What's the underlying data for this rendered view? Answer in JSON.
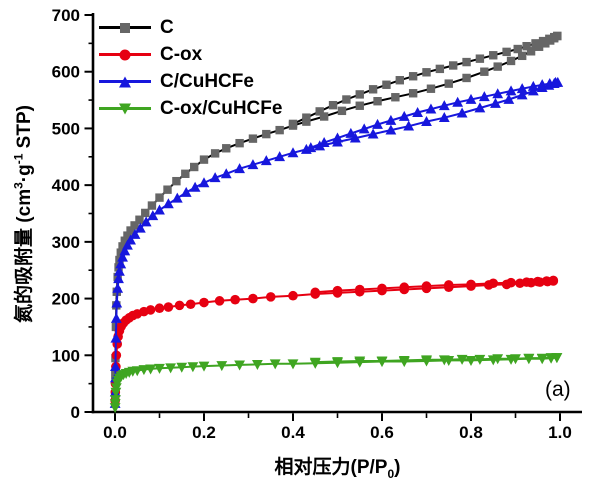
{
  "figure": {
    "panel_label": "(a)"
  },
  "legend": {
    "items": [
      {
        "label": "C",
        "line_color": "#000000",
        "marker_color": "#666666",
        "marker": "square"
      },
      {
        "label": "C-ox",
        "line_color": "#e60011",
        "marker_color": "#e60011",
        "marker": "circle"
      },
      {
        "label": "C/CuHCFe",
        "line_color": "#1717dd",
        "marker_color": "#1717dd",
        "marker": "triangle-up"
      },
      {
        "label": "C-ox/CuHCFe",
        "line_color": "#3fa521",
        "marker_color": "#3fa521",
        "marker": "triangle-down"
      }
    ]
  },
  "axes": {
    "x_axis": {
      "title_parts": {
        "p1": "相对压力(P/P",
        "sub1": "0",
        "p2": ")"
      },
      "range": [
        0,
        1
      ],
      "ticks": [
        0,
        0.2,
        0.4,
        0.6,
        0.8,
        1.0
      ],
      "tick_labels": [
        "0.0",
        "0.2",
        "0.4",
        "0.6",
        "0.8",
        "1.0"
      ],
      "minor_step": 0.1
    },
    "y_axis": {
      "title_parts": {
        "p1": "氮的吸附量 (cm",
        "sup1": "3",
        "p2": "·g",
        "sup2": "-1",
        "p3": " STP)"
      },
      "range": [
        0,
        700
      ],
      "ticks": [
        0,
        100,
        200,
        300,
        400,
        500,
        600,
        700
      ],
      "tick_labels": [
        "0",
        "100",
        "200",
        "300",
        "400",
        "500",
        "600",
        "700"
      ],
      "minor_step": 50
    }
  },
  "chart_data": {
    "type": "line",
    "title": "",
    "xlabel": "相对压力(P/P0)",
    "ylabel": "氮的吸附量 (cm3·g-1 STP)",
    "xlim": [
      0,
      1
    ],
    "ylim": [
      0,
      700
    ],
    "grid": false,
    "legend_position": "top-left",
    "series": [
      {
        "name": "C",
        "line_color": "#000000",
        "marker_color": "#666666",
        "marker": "square",
        "adsorption": [
          [
            0.0004,
            30
          ],
          [
            0.0007,
            65
          ],
          [
            0.001,
            95
          ],
          [
            0.002,
            150
          ],
          [
            0.003,
            188
          ],
          [
            0.004,
            212
          ],
          [
            0.006,
            238
          ],
          [
            0.008,
            255
          ],
          [
            0.01,
            268
          ],
          [
            0.013,
            281
          ],
          [
            0.017,
            292
          ],
          [
            0.022,
            302
          ],
          [
            0.028,
            311
          ],
          [
            0.035,
            320
          ],
          [
            0.044,
            329
          ],
          [
            0.055,
            339
          ],
          [
            0.068,
            351
          ],
          [
            0.083,
            364
          ],
          [
            0.1,
            378
          ],
          [
            0.118,
            392
          ],
          [
            0.138,
            407
          ],
          [
            0.158,
            420
          ],
          [
            0.178,
            432
          ],
          [
            0.2,
            445
          ],
          [
            0.225,
            456
          ],
          [
            0.25,
            465
          ],
          [
            0.28,
            474
          ],
          [
            0.31,
            482
          ],
          [
            0.34,
            490
          ],
          [
            0.37,
            497
          ],
          [
            0.4,
            505
          ],
          [
            0.43,
            512
          ],
          [
            0.47,
            521
          ],
          [
            0.51,
            531
          ],
          [
            0.55,
            540
          ],
          [
            0.59,
            548
          ],
          [
            0.63,
            555
          ],
          [
            0.67,
            562
          ],
          [
            0.71,
            570
          ],
          [
            0.75,
            579
          ],
          [
            0.79,
            589
          ],
          [
            0.83,
            600
          ],
          [
            0.86,
            609
          ],
          [
            0.89,
            619
          ],
          [
            0.915,
            628
          ],
          [
            0.935,
            636
          ],
          [
            0.953,
            644
          ],
          [
            0.967,
            650
          ],
          [
            0.978,
            655
          ],
          [
            0.987,
            659
          ],
          [
            0.994,
            663
          ]
        ],
        "desorption": [
          [
            0.4,
            508
          ],
          [
            0.43,
            519
          ],
          [
            0.46,
            530
          ],
          [
            0.49,
            541
          ],
          [
            0.52,
            551
          ],
          [
            0.55,
            560
          ],
          [
            0.58,
            569
          ],
          [
            0.61,
            577
          ],
          [
            0.64,
            585
          ],
          [
            0.67,
            592
          ],
          [
            0.7,
            599
          ],
          [
            0.73,
            605
          ],
          [
            0.76,
            611
          ],
          [
            0.79,
            617
          ],
          [
            0.82,
            623
          ],
          [
            0.85,
            629
          ],
          [
            0.88,
            635
          ],
          [
            0.905,
            640
          ],
          [
            0.925,
            645
          ],
          [
            0.945,
            650
          ],
          [
            0.962,
            654
          ],
          [
            0.976,
            658
          ],
          [
            0.987,
            661
          ],
          [
            0.994,
            663
          ]
        ]
      },
      {
        "name": "C-ox",
        "line_color": "#e60011",
        "marker_color": "#e60011",
        "marker": "circle",
        "adsorption": [
          [
            0.0004,
            20
          ],
          [
            0.0007,
            35
          ],
          [
            0.001,
            50
          ],
          [
            0.002,
            80
          ],
          [
            0.003,
            100
          ],
          [
            0.005,
            120
          ],
          [
            0.007,
            133
          ],
          [
            0.01,
            143
          ],
          [
            0.014,
            151
          ],
          [
            0.019,
            157
          ],
          [
            0.025,
            162
          ],
          [
            0.032,
            166
          ],
          [
            0.04,
            170
          ],
          [
            0.05,
            173
          ],
          [
            0.065,
            177
          ],
          [
            0.08,
            180
          ],
          [
            0.1,
            183
          ],
          [
            0.12,
            185
          ],
          [
            0.145,
            188
          ],
          [
            0.17,
            190
          ],
          [
            0.2,
            193
          ],
          [
            0.235,
            196
          ],
          [
            0.27,
            198
          ],
          [
            0.31,
            200
          ],
          [
            0.35,
            203
          ],
          [
            0.4,
            205
          ],
          [
            0.45,
            208
          ],
          [
            0.5,
            210
          ],
          [
            0.55,
            212
          ],
          [
            0.6,
            214
          ],
          [
            0.65,
            216
          ],
          [
            0.7,
            218
          ],
          [
            0.75,
            220
          ],
          [
            0.8,
            222
          ],
          [
            0.84,
            224
          ],
          [
            0.88,
            225
          ],
          [
            0.91,
            227
          ],
          [
            0.935,
            228
          ],
          [
            0.955,
            229
          ],
          [
            0.972,
            230
          ],
          [
            0.985,
            231
          ]
        ],
        "desorption": [
          [
            0.45,
            211
          ],
          [
            0.5,
            214
          ],
          [
            0.55,
            216
          ],
          [
            0.6,
            218
          ],
          [
            0.65,
            220
          ],
          [
            0.7,
            222
          ],
          [
            0.75,
            224
          ],
          [
            0.8,
            225
          ],
          [
            0.85,
            227
          ],
          [
            0.89,
            228
          ],
          [
            0.925,
            229
          ],
          [
            0.95,
            230
          ],
          [
            0.97,
            231
          ],
          [
            0.985,
            232
          ]
        ]
      },
      {
        "name": "C/CuHCFe",
        "line_color": "#1717dd",
        "marker_color": "#1717dd",
        "marker": "triangle-up",
        "adsorption": [
          [
            0.0003,
            15
          ],
          [
            0.0005,
            35
          ],
          [
            0.0008,
            60
          ],
          [
            0.001,
            80
          ],
          [
            0.002,
            130
          ],
          [
            0.003,
            165
          ],
          [
            0.004,
            192
          ],
          [
            0.006,
            218
          ],
          [
            0.008,
            235
          ],
          [
            0.01,
            248
          ],
          [
            0.013,
            261
          ],
          [
            0.017,
            273
          ],
          [
            0.022,
            284
          ],
          [
            0.028,
            294
          ],
          [
            0.035,
            303
          ],
          [
            0.045,
            313
          ],
          [
            0.057,
            324
          ],
          [
            0.07,
            335
          ],
          [
            0.085,
            346
          ],
          [
            0.1,
            356
          ],
          [
            0.12,
            367
          ],
          [
            0.14,
            377
          ],
          [
            0.16,
            387
          ],
          [
            0.18,
            396
          ],
          [
            0.2,
            404
          ],
          [
            0.225,
            413
          ],
          [
            0.25,
            420
          ],
          [
            0.28,
            429
          ],
          [
            0.31,
            436
          ],
          [
            0.34,
            443
          ],
          [
            0.37,
            450
          ],
          [
            0.4,
            457
          ],
          [
            0.43,
            463
          ],
          [
            0.46,
            469
          ],
          [
            0.5,
            476
          ],
          [
            0.54,
            483
          ],
          [
            0.58,
            490
          ],
          [
            0.62,
            497
          ],
          [
            0.66,
            504
          ],
          [
            0.7,
            512
          ],
          [
            0.74,
            519
          ],
          [
            0.78,
            527
          ],
          [
            0.82,
            536
          ],
          [
            0.855,
            544
          ],
          [
            0.885,
            551
          ],
          [
            0.915,
            559
          ],
          [
            0.94,
            566
          ],
          [
            0.96,
            572
          ],
          [
            0.975,
            576
          ],
          [
            0.987,
            579
          ],
          [
            0.995,
            581
          ]
        ],
        "desorption": [
          [
            0.44,
            466
          ],
          [
            0.47,
            475
          ],
          [
            0.5,
            483
          ],
          [
            0.53,
            491
          ],
          [
            0.56,
            499
          ],
          [
            0.59,
            507
          ],
          [
            0.62,
            514
          ],
          [
            0.65,
            521
          ],
          [
            0.68,
            528
          ],
          [
            0.71,
            534
          ],
          [
            0.74,
            540
          ],
          [
            0.77,
            546
          ],
          [
            0.8,
            551
          ],
          [
            0.83,
            556
          ],
          [
            0.86,
            561
          ],
          [
            0.89,
            566
          ],
          [
            0.915,
            570
          ],
          [
            0.94,
            574
          ],
          [
            0.96,
            577
          ],
          [
            0.977,
            579
          ],
          [
            0.99,
            581
          ]
        ]
      },
      {
        "name": "C-ox/CuHCFe",
        "line_color": "#3fa521",
        "marker_color": "#3fa521",
        "marker": "triangle-down",
        "adsorption": [
          [
            0.0003,
            8
          ],
          [
            0.0006,
            15
          ],
          [
            0.001,
            22
          ],
          [
            0.002,
            35
          ],
          [
            0.003,
            43
          ],
          [
            0.005,
            51
          ],
          [
            0.007,
            56
          ],
          [
            0.01,
            60
          ],
          [
            0.014,
            63
          ],
          [
            0.019,
            66
          ],
          [
            0.025,
            68
          ],
          [
            0.032,
            70
          ],
          [
            0.04,
            72
          ],
          [
            0.05,
            73
          ],
          [
            0.065,
            75
          ],
          [
            0.08,
            76
          ],
          [
            0.1,
            77
          ],
          [
            0.125,
            78
          ],
          [
            0.15,
            79
          ],
          [
            0.175,
            80
          ],
          [
            0.2,
            81
          ],
          [
            0.24,
            82
          ],
          [
            0.28,
            83
          ],
          [
            0.32,
            84
          ],
          [
            0.36,
            85
          ],
          [
            0.4,
            85
          ],
          [
            0.45,
            86
          ],
          [
            0.5,
            87
          ],
          [
            0.55,
            88
          ],
          [
            0.6,
            89
          ],
          [
            0.65,
            89
          ],
          [
            0.7,
            90
          ],
          [
            0.75,
            91
          ],
          [
            0.8,
            91
          ],
          [
            0.85,
            92
          ],
          [
            0.89,
            93
          ],
          [
            0.93,
            94
          ],
          [
            0.96,
            94
          ],
          [
            0.98,
            95
          ],
          [
            0.993,
            96
          ]
        ],
        "desorption": [
          [
            0.45,
            88
          ],
          [
            0.5,
            89
          ],
          [
            0.55,
            90
          ],
          [
            0.6,
            90
          ],
          [
            0.65,
            91
          ],
          [
            0.7,
            92
          ],
          [
            0.74,
            92
          ],
          [
            0.78,
            93
          ],
          [
            0.82,
            93
          ],
          [
            0.86,
            94
          ],
          [
            0.9,
            94
          ],
          [
            0.93,
            95
          ],
          [
            0.96,
            95
          ],
          [
            0.98,
            96
          ],
          [
            0.993,
            96
          ]
        ]
      }
    ]
  }
}
